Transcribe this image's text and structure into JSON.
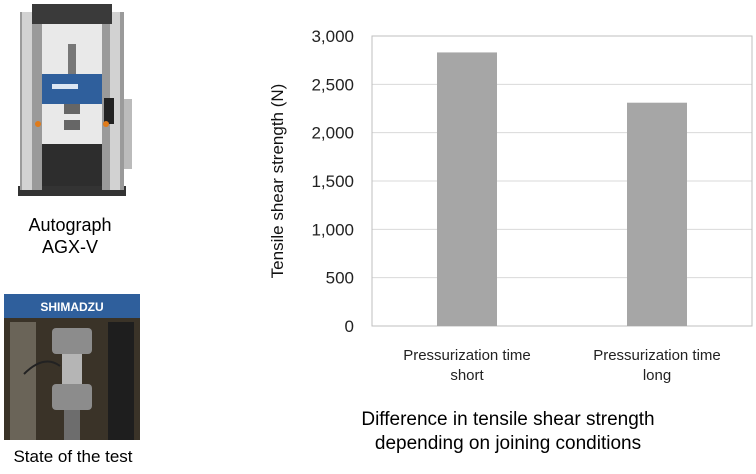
{
  "photos": {
    "machine_caption": [
      "Autograph",
      "AGX-V"
    ],
    "test_caption": "State of the test",
    "brand_label": "SHIMADZU"
  },
  "caption": {
    "line1": "Difference in tensile shear strength",
    "line2": "depending on joining conditions"
  },
  "colors": {
    "bar": "#a6a6a6",
    "gridline": "#d9d9d9",
    "frame": "#bfbfbf"
  },
  "chart_data": {
    "type": "bar",
    "title": "",
    "xlabel": "",
    "ylabel": "Tensile shear strength (N)",
    "ylim": [
      0,
      3000
    ],
    "yticks": [
      0,
      500,
      1000,
      1500,
      2000,
      2500,
      3000
    ],
    "ytick_labels": [
      "0",
      "500",
      "1,000",
      "1,500",
      "2,000",
      "2,500",
      "3,000"
    ],
    "categories": [
      [
        "Pressurization time",
        "short"
      ],
      [
        "Pressurization time",
        "long"
      ]
    ],
    "values": [
      2830,
      2310
    ],
    "grid": true,
    "legend": "none"
  }
}
